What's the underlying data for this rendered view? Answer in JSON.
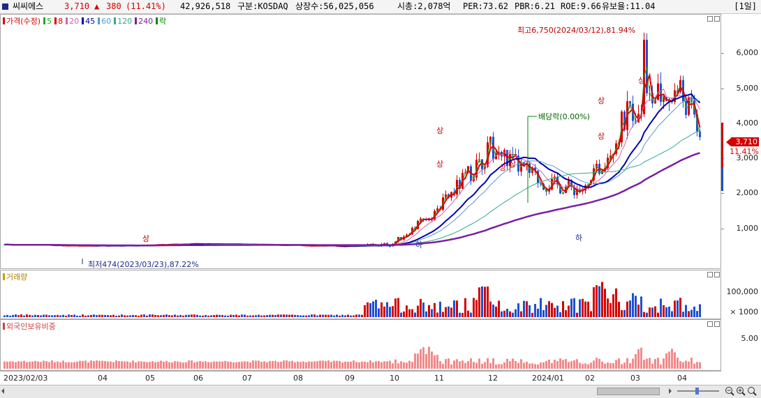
{
  "header": {
    "name": "씨씨에스",
    "price": "3,710",
    "change_arrow": "▲",
    "change": "380",
    "change_pct": "(11.41%)",
    "volume": "42,926,518",
    "market": "구분:KOSDAQ",
    "shares": "상장수:56,025,056",
    "market_cap": "시총:2,078억",
    "per": "PER:73.62",
    "pbr": "PBR:6.21",
    "roe": "ROE:9.66",
    "float": "유보율:11.04",
    "period": "[1일]"
  },
  "price_panel": {
    "legend": [
      {
        "label": "가격(수정)",
        "color": "#d40000"
      },
      {
        "label": "5",
        "color": "#22aa22"
      },
      {
        "label": "8",
        "color": "#e00000"
      },
      {
        "label": "20",
        "color": "#cc66aa"
      },
      {
        "label": "45",
        "color": "#0000aa"
      },
      {
        "label": "60",
        "color": "#5599cc"
      },
      {
        "label": "120",
        "color": "#33aa88"
      },
      {
        "label": "240",
        "color": "#7a1fa0"
      },
      {
        "label": "락",
        "color": "#008800"
      }
    ],
    "y_ticks": [
      "6,000",
      "5,000",
      "4,000",
      "3,000",
      "2,000",
      "1,000"
    ],
    "high_label": "최고6,750(2024/03/12),81.94%",
    "low_label": "최저474(2023/03/23),87.22%",
    "dividend_label": "배당락(0.00%)",
    "limit_up": "상",
    "limit_down": "하",
    "current_price": "3,710",
    "current_pct": "11.41%"
  },
  "volume_panel": {
    "title": "거래량",
    "y_ticks": [
      "100,000",
      "× 1000"
    ]
  },
  "foreign_panel": {
    "title": "외국인보유비중",
    "y_ticks": [
      "5.00"
    ]
  },
  "x_axis": {
    "labels": [
      "2023/02/03",
      "04",
      "05",
      "06",
      "07",
      "08",
      "09",
      "10",
      "11",
      "12",
      "2024/01",
      "02",
      "03",
      "04"
    ]
  },
  "chart_data": {
    "type": "candlestick",
    "x_range": [
      "2023/02/03",
      "2024/04"
    ],
    "ylim": [
      0,
      7000
    ],
    "price_path": [
      {
        "month": "2023/02",
        "close": 560
      },
      {
        "month": "2023/03",
        "close": 520
      },
      {
        "month": "2023/04",
        "close": 540
      },
      {
        "month": "2023/05",
        "close": 580
      },
      {
        "month": "2023/06",
        "close": 560
      },
      {
        "month": "2023/07",
        "close": 540
      },
      {
        "month": "2023/08",
        "close": 510
      },
      {
        "month": "2023/09",
        "close": 560
      },
      {
        "month": "2023/10",
        "close": 1500
      },
      {
        "month": "2023/11",
        "close": 3300
      },
      {
        "month": "2023/12",
        "close": 2300
      },
      {
        "month": "2024/01",
        "close": 2100
      },
      {
        "month": "2024/02",
        "close": 4500
      },
      {
        "month": "2024/03",
        "close": 5000
      },
      {
        "month": "2024/04",
        "close": 3710
      }
    ],
    "high": {
      "value": 6750,
      "date": "2024/03/12"
    },
    "low": {
      "value": 474,
      "date": "2023/03/23"
    },
    "current": 3710
  }
}
